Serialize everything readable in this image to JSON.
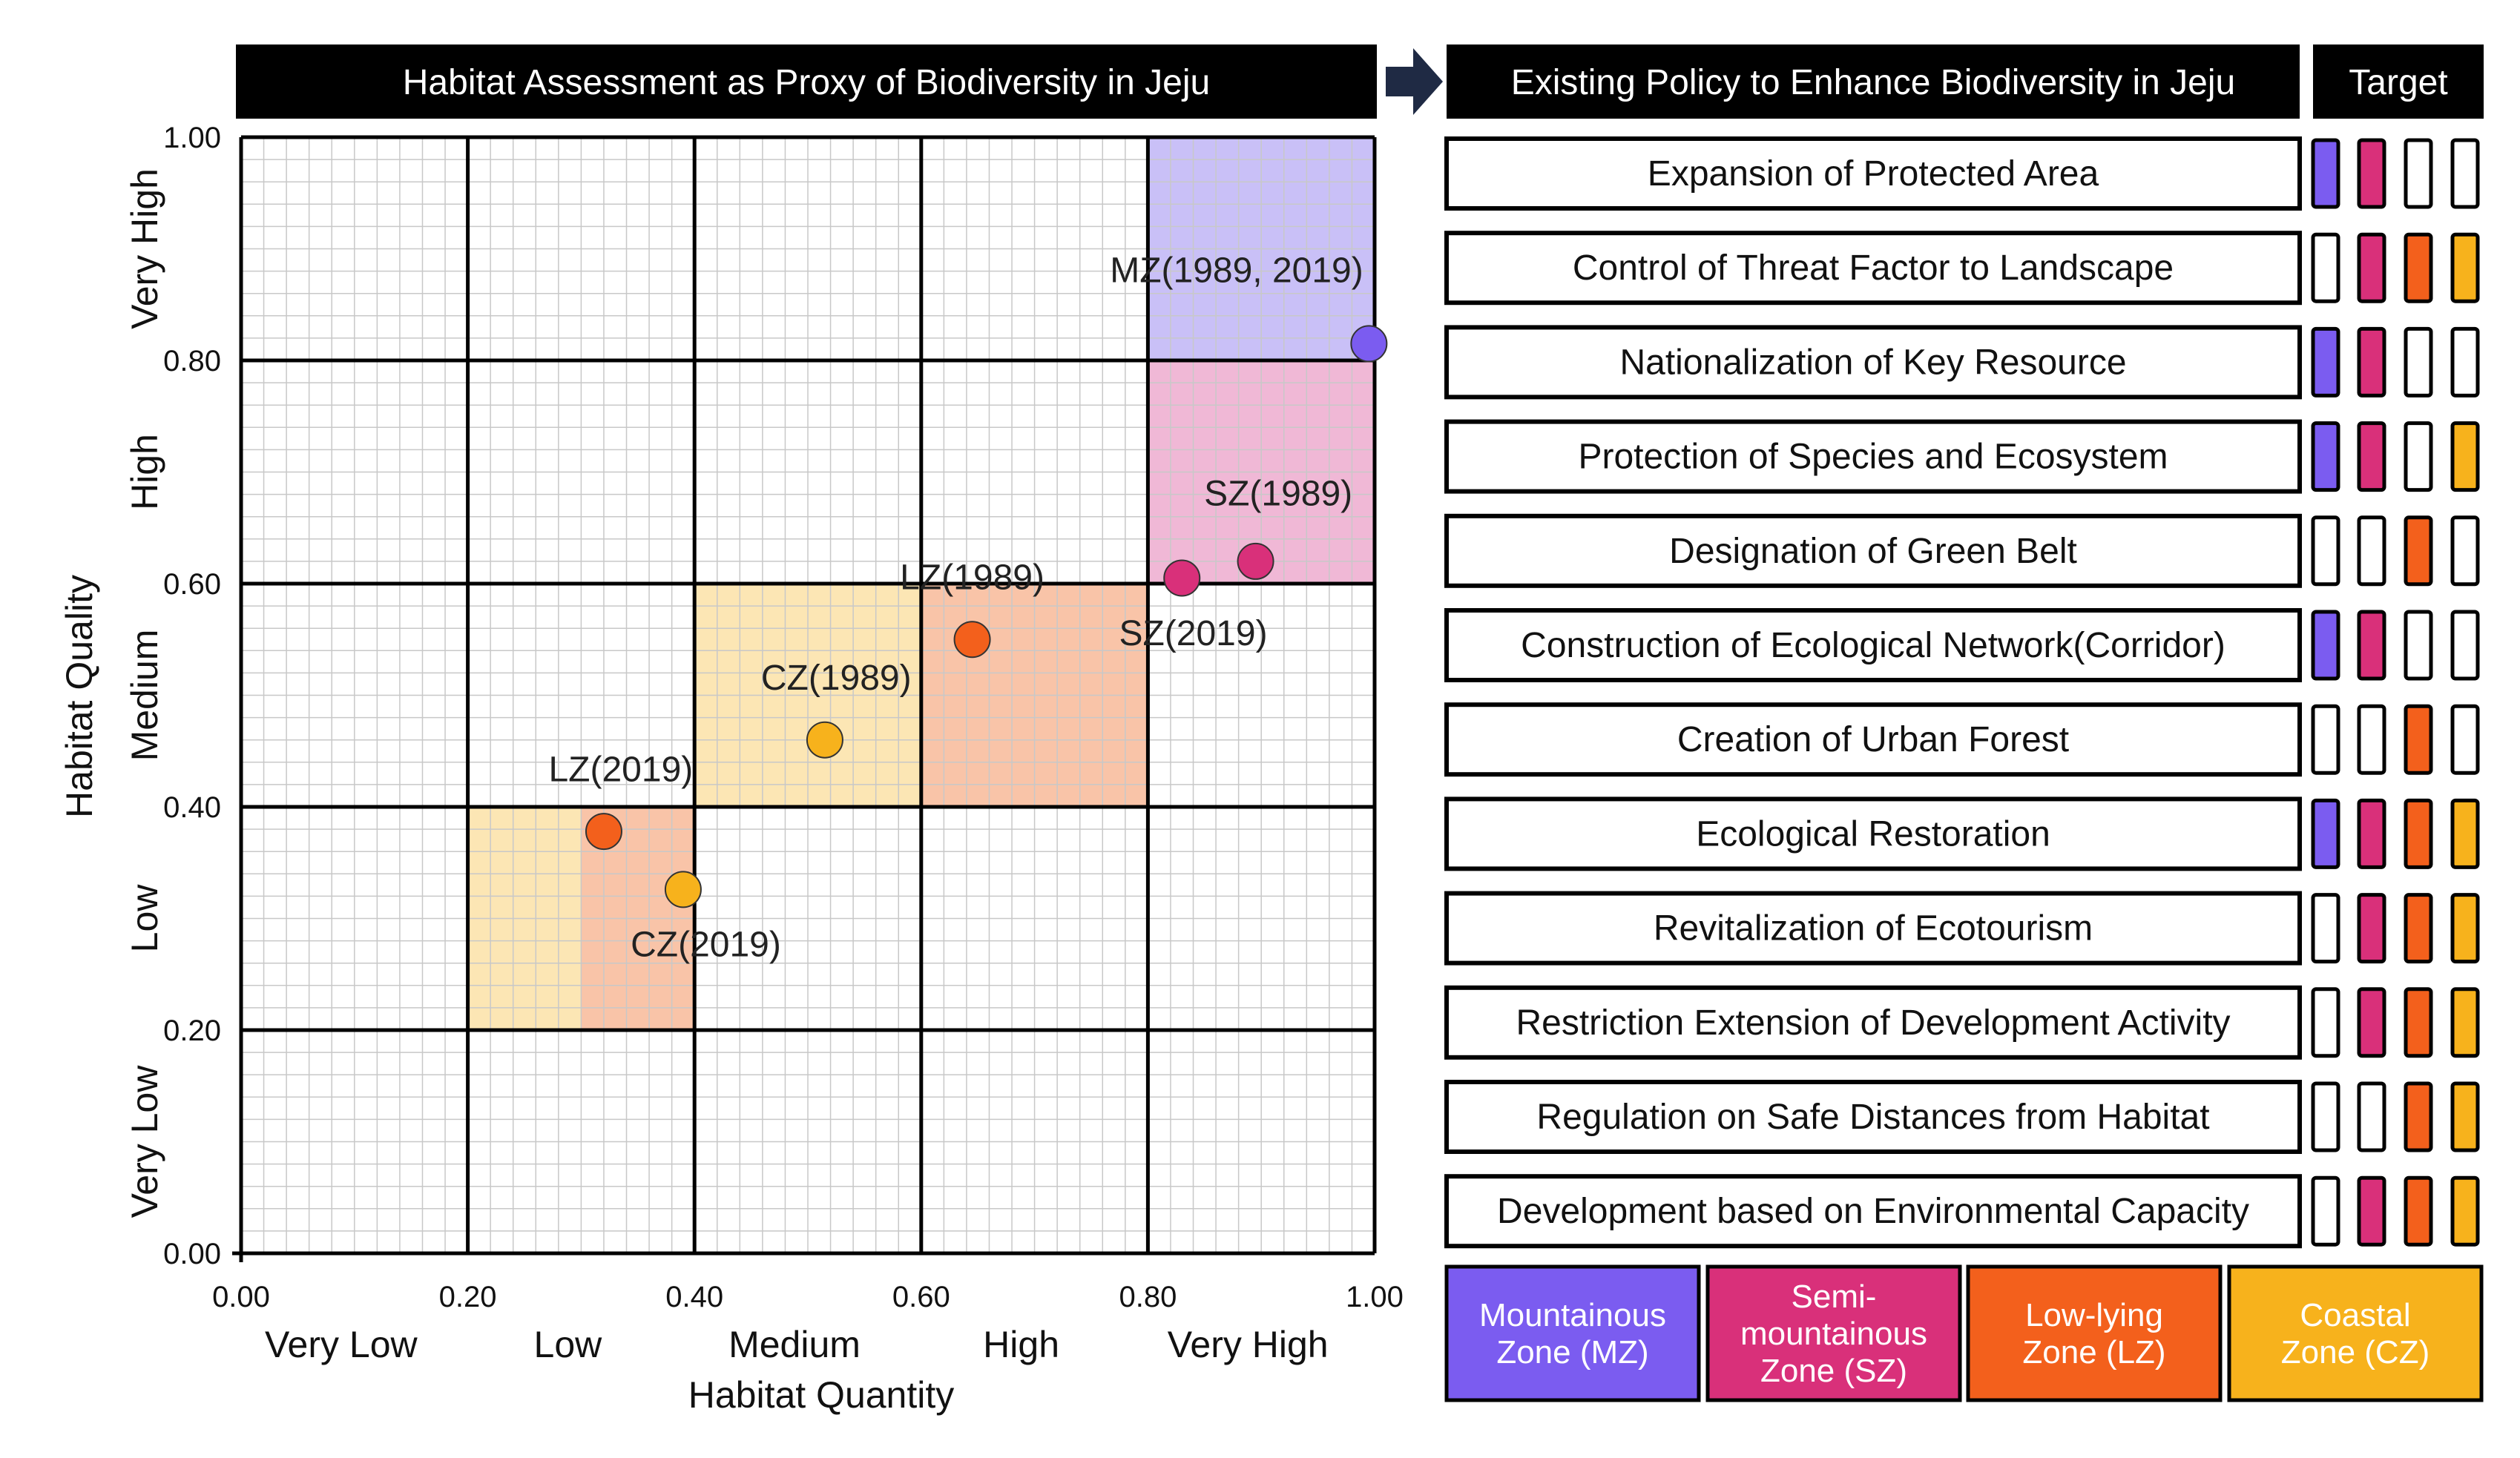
{
  "chart_title": "Habitat Assessment as Proxy of Biodiversity in Jeju",
  "policy_title": "Existing Policy to Enhance Biodiversity in Jeju",
  "target_title": "Target",
  "colors": {
    "MZ": "#7b5cf0",
    "SZ": "#d9307a",
    "LZ": "#f3601c",
    "CZ": "#f7b21c",
    "MZ_fill": "#c9c0f7",
    "SZ_fill": "#f0b8d6",
    "LZ_fill": "#f9c4a8",
    "CZ_fill": "#fce6b4"
  },
  "chart_data": {
    "type": "scatter",
    "title": "Habitat Assessment as Proxy of Biodiversity in Jeju",
    "xlabel": "Habitat Quantity",
    "ylabel": "Habitat Quality",
    "xlim": [
      0,
      1
    ],
    "ylim": [
      0,
      1
    ],
    "x_ticks": [
      "0.00",
      "0.20",
      "0.40",
      "0.60",
      "0.80",
      "1.00"
    ],
    "y_ticks": [
      "0.00",
      "0.20",
      "0.40",
      "0.60",
      "0.80",
      "1.00"
    ],
    "x_categories": [
      "Very Low",
      "Low",
      "Medium",
      "High",
      "Very High"
    ],
    "y_categories": [
      "Very Low",
      "Low",
      "Medium",
      "High",
      "Very High"
    ],
    "regions": [
      {
        "zone": "MZ",
        "x": [
          0.8,
          1.0
        ],
        "y": [
          0.8,
          1.0
        ]
      },
      {
        "zone": "SZ",
        "x": [
          0.8,
          1.0
        ],
        "y": [
          0.6,
          0.8
        ]
      },
      {
        "zone": "LZ",
        "x": [
          0.6,
          0.8
        ],
        "y": [
          0.4,
          0.6
        ]
      },
      {
        "zone": "CZ",
        "x": [
          0.4,
          0.6
        ],
        "y": [
          0.4,
          0.6
        ]
      },
      {
        "zone": "CZ",
        "x": [
          0.2,
          0.3
        ],
        "y": [
          0.2,
          0.4
        ]
      },
      {
        "zone": "LZ",
        "x": [
          0.3,
          0.4
        ],
        "y": [
          0.2,
          0.4
        ]
      }
    ],
    "points": [
      {
        "label": "MZ(1989, 2019)",
        "zone": "MZ",
        "x": 0.995,
        "y": 0.815,
        "anchor": "end",
        "lx": -0.005,
        "ly": 0.055
      },
      {
        "label": "SZ(1989)",
        "zone": "SZ",
        "x": 0.895,
        "y": 0.62,
        "anchor": "middle",
        "lx": 0.02,
        "ly": 0.05
      },
      {
        "label": "SZ(2019)",
        "zone": "SZ",
        "x": 0.83,
        "y": 0.605,
        "anchor": "middle",
        "lx": 0.01,
        "ly": -0.06
      },
      {
        "label": "LZ(1989)",
        "zone": "LZ",
        "x": 0.645,
        "y": 0.55,
        "anchor": "middle",
        "lx": 0.0,
        "ly": 0.045
      },
      {
        "label": "CZ(1989)",
        "zone": "CZ",
        "x": 0.515,
        "y": 0.46,
        "anchor": "middle",
        "lx": 0.01,
        "ly": 0.045
      },
      {
        "label": "LZ(2019)",
        "zone": "LZ",
        "x": 0.32,
        "y": 0.378,
        "anchor": "middle",
        "lx": 0.015,
        "ly": 0.045
      },
      {
        "label": "CZ(2019)",
        "zone": "CZ",
        "x": 0.39,
        "y": 0.326,
        "anchor": "middle",
        "lx": 0.02,
        "ly": -0.06
      }
    ]
  },
  "policies": [
    {
      "label": "Expansion of Protected Area",
      "targets": [
        true,
        true,
        false,
        false
      ]
    },
    {
      "label": "Control of Threat Factor to Landscape",
      "targets": [
        false,
        true,
        true,
        true
      ]
    },
    {
      "label": "Nationalization of Key Resource",
      "targets": [
        true,
        true,
        false,
        false
      ]
    },
    {
      "label": "Protection of Species and Ecosystem",
      "targets": [
        true,
        true,
        false,
        true
      ]
    },
    {
      "label": "Designation of Green Belt",
      "targets": [
        false,
        false,
        true,
        false
      ]
    },
    {
      "label": "Construction of Ecological Network(Corridor)",
      "targets": [
        true,
        true,
        false,
        false
      ]
    },
    {
      "label": "Creation of Urban Forest",
      "targets": [
        false,
        false,
        true,
        false
      ]
    },
    {
      "label": "Ecological Restoration",
      "targets": [
        true,
        true,
        true,
        true
      ]
    },
    {
      "label": "Revitalization of Ecotourism",
      "targets": [
        false,
        true,
        true,
        true
      ]
    },
    {
      "label": "Restriction Extension of Development Activity",
      "targets": [
        false,
        true,
        true,
        true
      ]
    },
    {
      "label": "Regulation on Safe Distances from Habitat",
      "targets": [
        false,
        false,
        true,
        true
      ]
    },
    {
      "label": "Development based on Environmental Capacity",
      "targets": [
        false,
        true,
        true,
        true
      ]
    }
  ],
  "legend": [
    {
      "zone": "MZ",
      "lines": [
        "Mountainous",
        "Zone (MZ)"
      ]
    },
    {
      "zone": "SZ",
      "lines": [
        "Semi-",
        "mountainous",
        "Zone (SZ)"
      ]
    },
    {
      "zone": "LZ",
      "lines": [
        "Low-lying",
        "Zone (LZ)"
      ]
    },
    {
      "zone": "CZ",
      "lines": [
        "Coastal",
        "Zone (CZ)"
      ]
    }
  ]
}
